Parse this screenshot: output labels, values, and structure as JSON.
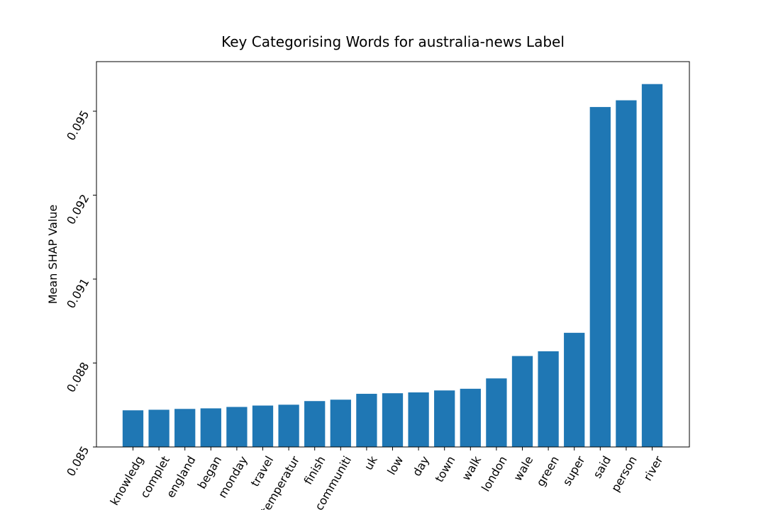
{
  "chart_data": {
    "type": "bar",
    "title": "Key Categorising Words for australia-news Label",
    "xlabel": "",
    "ylabel": "Mean SHAP Value",
    "categories": [
      "knowledg",
      "complet",
      "england",
      "began",
      "monday",
      "travel",
      "temperatur",
      "finish",
      "communiti",
      "uk",
      "low",
      "day",
      "town",
      "walk",
      "london",
      "wale",
      "green",
      "super",
      "said",
      "person",
      "river"
    ],
    "values": [
      0.08631,
      0.08633,
      0.08636,
      0.08638,
      0.08643,
      0.08648,
      0.08651,
      0.08664,
      0.08669,
      0.0869,
      0.08692,
      0.08695,
      0.08702,
      0.08708,
      0.08745,
      0.08825,
      0.08842,
      0.08908,
      0.09515,
      0.09539,
      0.09597
    ],
    "yticks": [
      0.085,
      0.088,
      0.091,
      0.092,
      0.095
    ],
    "ytick_labels": [
      "0.085",
      "0.088",
      "0.091",
      "0.092",
      "0.095"
    ],
    "ylim": [
      0.085,
      0.0963
    ],
    "grid": false,
    "bar_color": "#1f77b4"
  }
}
